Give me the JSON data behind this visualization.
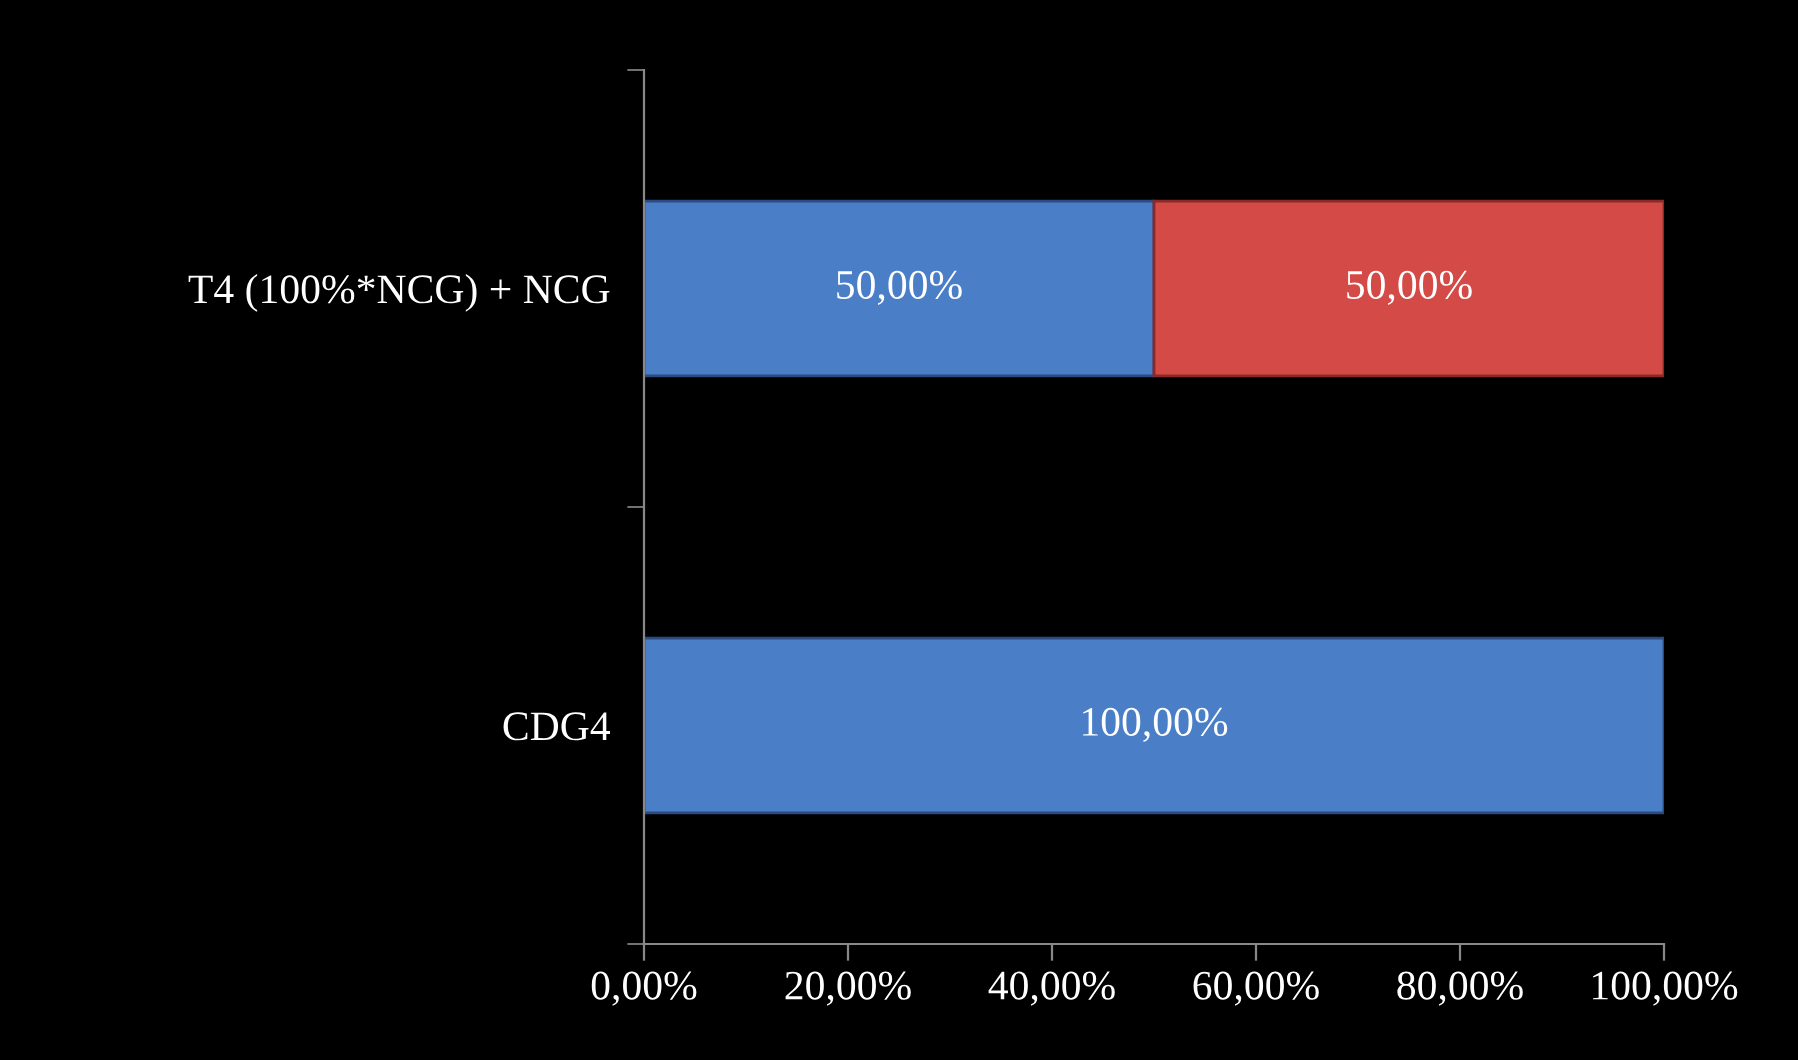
{
  "chart_data": {
    "type": "bar",
    "orientation": "horizontal",
    "stacked": true,
    "categories": [
      "T4 (100%*NCG) + NCG",
      "CDG4"
    ],
    "series": [
      {
        "color": "#4a7fc8",
        "values": [
          50,
          100
        ],
        "value_labels": [
          "50,00%",
          "100,00%"
        ]
      },
      {
        "color": "#d44a47",
        "values": [
          50,
          null
        ],
        "value_labels": [
          "50,00%",
          null
        ]
      }
    ],
    "xlim": [
      0,
      100
    ],
    "xticks": [
      {
        "value": 0,
        "label": "0,00%"
      },
      {
        "value": 20,
        "label": "20,00%"
      },
      {
        "value": 40,
        "label": "40,00%"
      },
      {
        "value": 60,
        "label": "60,00%"
      },
      {
        "value": 80,
        "label": "80,00%"
      },
      {
        "value": 100,
        "label": "100,00%"
      }
    ],
    "grid": false,
    "legend": false
  }
}
